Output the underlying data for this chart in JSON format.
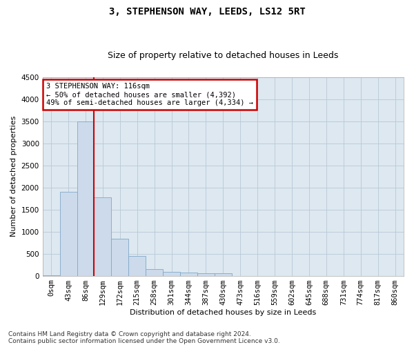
{
  "title1": "3, STEPHENSON WAY, LEEDS, LS12 5RT",
  "title2": "Size of property relative to detached houses in Leeds",
  "xlabel": "Distribution of detached houses by size in Leeds",
  "ylabel": "Number of detached properties",
  "footnote1": "Contains HM Land Registry data © Crown copyright and database right 2024.",
  "footnote2": "Contains public sector information licensed under the Open Government Licence v3.0.",
  "annotation_line1": "3 STEPHENSON WAY: 116sqm",
  "annotation_line2": "← 50% of detached houses are smaller (4,392)",
  "annotation_line3": "49% of semi-detached houses are larger (4,334) →",
  "categories": [
    "0sqm",
    "43sqm",
    "86sqm",
    "129sqm",
    "172sqm",
    "215sqm",
    "258sqm",
    "301sqm",
    "344sqm",
    "387sqm",
    "430sqm",
    "473sqm",
    "516sqm",
    "559sqm",
    "602sqm",
    "645sqm",
    "688sqm",
    "731sqm",
    "774sqm",
    "817sqm",
    "860sqm"
  ],
  "values": [
    5,
    1900,
    3500,
    1780,
    830,
    440,
    155,
    90,
    70,
    55,
    50,
    0,
    0,
    0,
    0,
    0,
    0,
    0,
    0,
    0,
    0
  ],
  "bar_color": "#ccdaeb",
  "bar_edge_color": "#7fa8c8",
  "vline_color": "#cc0000",
  "vline_x": 2.5,
  "ylim": [
    0,
    4500
  ],
  "yticks": [
    0,
    500,
    1000,
    1500,
    2000,
    2500,
    3000,
    3500,
    4000,
    4500
  ],
  "bg_color": "#ffffff",
  "plot_bg_color": "#dde8f0",
  "grid_color": "#b8c8d8",
  "annotation_box_color": "#cc0000",
  "title1_fontsize": 10,
  "title2_fontsize": 9,
  "axis_label_fontsize": 8,
  "tick_fontsize": 7.5,
  "footnote_fontsize": 6.5
}
